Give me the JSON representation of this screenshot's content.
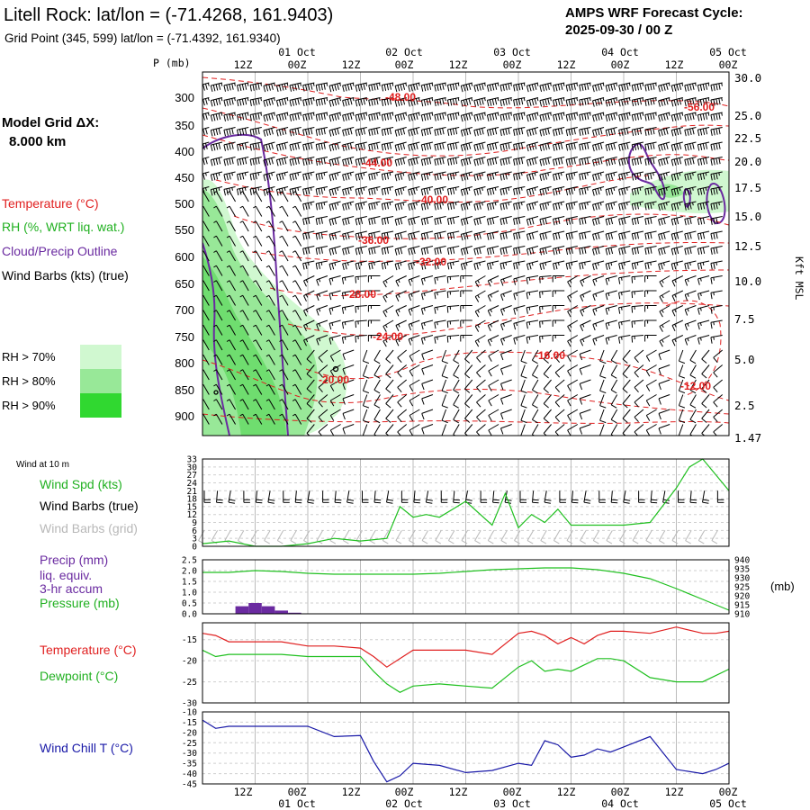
{
  "header": {
    "title": "Litell Rock:  lat/lon = (-71.4268, 161.9403)",
    "subtitle": "Grid Point (345, 599) lat/lon = (-71.4392, 161.9340)",
    "cycle_label": "AMPS WRF Forecast Cycle:",
    "cycle_value": "2025-09-30 / 00  Z"
  },
  "legend": {
    "grid_label": "Model Grid ΔX:",
    "grid_value": "8.000 km",
    "temperature": "Temperature (°C)",
    "rh": "RH (%, WRT liq. wat.)",
    "cloud": "Cloud/Precip Outline",
    "wind_barbs": "Wind Barbs (kts) (true)",
    "rh70": "RH > 70%",
    "rh80": "RH > 80%",
    "rh90": "RH > 90%",
    "rh_colors": [
      "#d0f8d0",
      "#98e898",
      "#30d830"
    ]
  },
  "colors": {
    "temperature": "#e02020",
    "rh_label": "#20b020",
    "cloud": "#6a2aa0",
    "wind_chill": "#1a1aa8",
    "grid": "#c0c0c0"
  },
  "time_axis": {
    "top_hours": [
      "12Z",
      "00Z",
      "12Z",
      "00Z",
      "12Z",
      "00Z",
      "12Z",
      "00Z",
      "12Z",
      "00Z"
    ],
    "top_dates": [
      "01 Oct",
      "02 Oct",
      "03 Oct",
      "04 Oct",
      "05 Oct"
    ],
    "bottom_hours": [
      "12Z",
      "00Z",
      "12Z",
      "00Z",
      "12Z",
      "00Z",
      "12Z",
      "00Z",
      "12Z",
      "00Z"
    ],
    "bottom_dates": [
      "01 Oct",
      "02 Oct",
      "03 Oct",
      "04 Oct",
      "05 Oct"
    ]
  },
  "chart_data": [
    {
      "type": "contour",
      "name": "cross-section",
      "ylabel": "P (mb)",
      "y2label": "Kft MSL",
      "x_range_hours": [
        0,
        120
      ],
      "pressure_ticks": [
        "300",
        "350",
        "400",
        "450",
        "500",
        "550",
        "600",
        "650",
        "700",
        "750",
        "800",
        "850",
        "900"
      ],
      "height_ticks": [
        "30.0",
        "25.0",
        "22.5",
        "20.0",
        "17.5",
        "15.0",
        "12.5",
        "10.0",
        "7.5",
        "5.0",
        "2.5",
        "1.47"
      ],
      "temperature_labels": [
        "-48.00",
        "-56.00",
        "-44.00",
        "-40.00",
        "-36.00",
        "-32.00",
        "-28.00",
        "-24.00",
        "-20.00",
        "-16.00",
        "-12.00"
      ]
    },
    {
      "type": "line",
      "name": "wind-10m",
      "title": "Wind at 10 m",
      "series_label": "Wind Spd (kts)",
      "barbs_true_label": "Wind Barbs (true)",
      "barbs_grid_label": "Wind Barbs (grid)",
      "yticks": [
        "33",
        "30",
        "27",
        "24",
        "21",
        "18",
        "15",
        "12",
        "9",
        "6",
        "3",
        "0"
      ],
      "ylim": [
        0,
        33
      ],
      "x_hours": [
        0,
        6,
        12,
        18,
        24,
        30,
        36,
        42,
        45,
        48,
        51,
        54,
        60,
        66,
        69,
        72,
        75,
        78,
        81,
        84,
        87,
        90,
        93,
        96,
        102,
        108,
        111,
        114,
        117,
        120
      ],
      "wind_speed": [
        1,
        2,
        0,
        0,
        1,
        3,
        2,
        3,
        15,
        11,
        12,
        11,
        17,
        8,
        20,
        7,
        12,
        9,
        14,
        8,
        8,
        8,
        8,
        8,
        9,
        22,
        30,
        33,
        27,
        21
      ],
      "barb_speed_true": [
        24,
        20,
        18,
        18,
        18,
        18,
        18,
        18,
        18,
        20,
        20,
        20,
        20,
        20,
        20,
        20,
        20,
        20,
        20,
        20,
        20,
        20,
        20,
        20,
        20,
        20,
        20,
        20,
        20,
        20
      ]
    },
    {
      "type": "bar+line",
      "name": "precip-pressure",
      "precip_label": "Precip (mm)",
      "precip_sub1": "liq. equiv.",
      "precip_sub2": "3-hr accum",
      "pressure_label": "Pressure (mb)",
      "y2unit": "(mb)",
      "yticks": [
        "2.5",
        "2.0",
        "1.5",
        "1.0",
        "0.5",
        "0.0"
      ],
      "y2ticks": [
        "940",
        "935",
        "930",
        "925",
        "920",
        "915",
        "910"
      ],
      "precip_ylim": [
        0,
        2.5
      ],
      "pressure_ylim": [
        910,
        940
      ],
      "precip_x_hours": [
        9,
        12,
        15,
        18,
        21
      ],
      "precip_values": [
        0.35,
        0.5,
        0.35,
        0.15,
        0.05
      ],
      "pressure_x_hours": [
        0,
        6,
        12,
        18,
        24,
        30,
        36,
        42,
        48,
        54,
        60,
        66,
        72,
        78,
        84,
        90,
        96,
        102,
        108,
        114,
        120
      ],
      "pressure_values": [
        933,
        933,
        934,
        933.5,
        932.5,
        932,
        932,
        932,
        932,
        932.5,
        933.5,
        934.5,
        935,
        935.5,
        935.5,
        934.5,
        932.5,
        929.5,
        924,
        918,
        912
      ]
    },
    {
      "type": "line",
      "name": "temperature-dewpoint",
      "temp_label": "Temperature (°C)",
      "dew_label": "Dewpoint (°C)",
      "yticks": [
        "-15",
        "-20",
        "-25",
        "-30"
      ],
      "ylim": [
        -30,
        -11
      ],
      "x_hours": [
        0,
        3,
        6,
        12,
        18,
        24,
        30,
        36,
        39,
        42,
        45,
        48,
        54,
        60,
        66,
        72,
        75,
        78,
        81,
        84,
        87,
        90,
        93,
        96,
        102,
        108,
        114,
        117,
        120
      ],
      "temperature": [
        -13.5,
        -14,
        -15.5,
        -15.5,
        -15.5,
        -16.5,
        -16.5,
        -17,
        -19,
        -21.5,
        -19.5,
        -17.5,
        -17.5,
        -17.5,
        -18.5,
        -13.5,
        -13,
        -14,
        -16,
        -14.5,
        -16,
        -14,
        -13,
        -13,
        -13.5,
        -12,
        -13.5,
        -13.5,
        -13
      ],
      "dewpoint": [
        -17.5,
        -19,
        -18.5,
        -18.5,
        -18.5,
        -19,
        -19,
        -19,
        -22.5,
        -25.5,
        -27.5,
        -26,
        -25.5,
        -26,
        -26.5,
        -21.5,
        -20,
        -22.5,
        -22,
        -22.5,
        -21,
        -19.5,
        -19.5,
        -20,
        -24,
        -25,
        -25,
        -23.5,
        -22
      ]
    },
    {
      "type": "line",
      "name": "wind-chill",
      "label": "Wind Chill T (°C)",
      "yticks": [
        "-10",
        "-15",
        "-20",
        "-25",
        "-30",
        "-35",
        "-40",
        "-45"
      ],
      "ylim": [
        -45,
        -10
      ],
      "x_hours": [
        0,
        3,
        6,
        12,
        18,
        24,
        30,
        36,
        39,
        42,
        45,
        48,
        54,
        60,
        66,
        72,
        75,
        78,
        81,
        84,
        87,
        90,
        93,
        96,
        102,
        108,
        114,
        117,
        120
      ],
      "values": [
        -14,
        -18,
        -17,
        -17,
        -17,
        -17,
        -22,
        -21.5,
        -34,
        -44,
        -41,
        -35,
        -36,
        -39.5,
        -38.5,
        -35,
        -36,
        -24,
        -26,
        -32,
        -31,
        -28,
        -29.5,
        -27,
        -22,
        -38,
        -40,
        -38,
        -35
      ]
    }
  ]
}
